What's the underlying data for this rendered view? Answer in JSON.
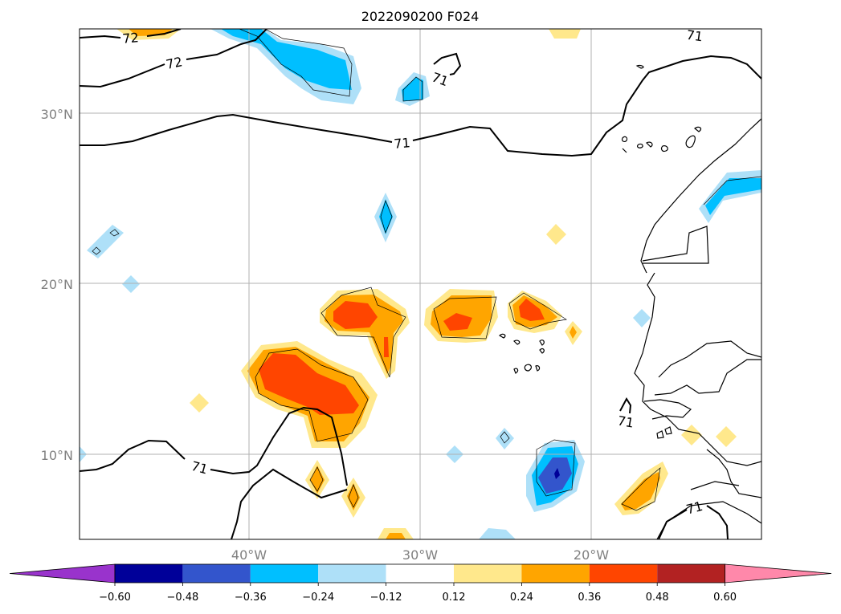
{
  "title": "2022090200 F024",
  "lat_labels": [
    "30°N",
    "20°N",
    "10°N"
  ],
  "lon_labels": [
    "40°W",
    "30°W",
    "20°W"
  ],
  "contour_labels": [
    "72",
    "72",
    "71",
    "71",
    "71",
    "71",
    "71",
    "71"
  ],
  "colorbar": {
    "tick_labels": [
      "−0.60",
      "−0.48",
      "−0.36",
      "−0.24",
      "−0.12",
      "0.12",
      "0.24",
      "0.36",
      "0.48",
      "0.60"
    ],
    "colors": [
      "#9933cc",
      "#000099",
      "#3355cc",
      "#00bfff",
      "#aee0f8",
      "#ffffff",
      "#ffe88c",
      "#ffa500",
      "#ff4500",
      "#b22222",
      "#ff88aa"
    ]
  }
}
